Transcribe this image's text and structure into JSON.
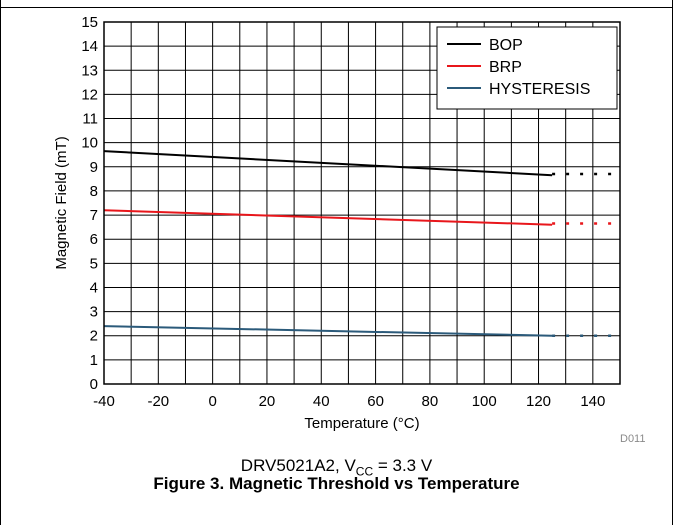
{
  "figure": {
    "caption": "Figure 3. Magnetic Threshold vs Temperature",
    "subcaption_part": "DRV5021A2, V",
    "subcaption_sub": "CC",
    "subcaption_tail": " = 3.3 V",
    "code": "D011"
  },
  "chart_data": {
    "type": "line",
    "xlabel": "Temperature (°C)",
    "ylabel": "Magnetic Field (mT)",
    "xlim": [
      -40,
      150
    ],
    "ylim": [
      0,
      15
    ],
    "xticks": [
      -40,
      -20,
      0,
      20,
      40,
      60,
      80,
      100,
      120,
      140
    ],
    "yticks": [
      0,
      1,
      2,
      3,
      4,
      5,
      6,
      7,
      8,
      9,
      10,
      11,
      12,
      13,
      14,
      15
    ],
    "grid": true,
    "legend_position": "top-right",
    "series": [
      {
        "name": "BOP",
        "color": "#000000",
        "x": [
          -40,
          125
        ],
        "y": [
          9.65,
          8.65
        ],
        "dotted_x": [
          125,
          150
        ],
        "dotted_y": [
          8.7,
          8.7
        ]
      },
      {
        "name": "BRP",
        "color": "#e8161b",
        "x": [
          -40,
          125
        ],
        "y": [
          7.2,
          6.6
        ],
        "dotted_x": [
          125,
          150
        ],
        "dotted_y": [
          6.65,
          6.65
        ]
      },
      {
        "name": "HYSTERESIS",
        "color": "#2b5a7a",
        "x": [
          -40,
          125
        ],
        "y": [
          2.4,
          2.0
        ],
        "dotted_x": [
          125,
          150
        ],
        "dotted_y": [
          2.0,
          2.0
        ]
      }
    ]
  }
}
